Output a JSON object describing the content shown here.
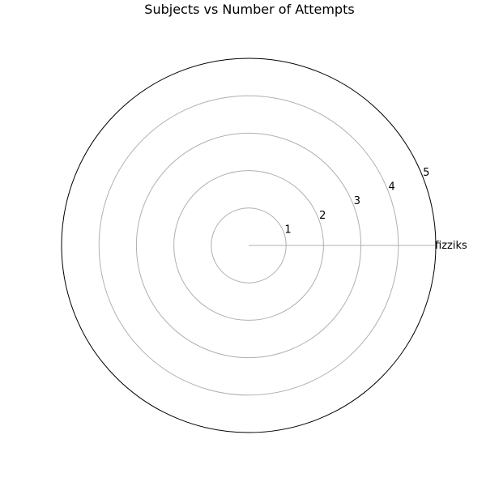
{
  "chart_data": {
    "type": "radar",
    "title": "Subjects vs Number of Attempts",
    "categories": [
      "fizziks"
    ],
    "rmax": 5,
    "rticks": [
      1,
      2,
      3,
      4,
      5
    ],
    "rtick_labels": [
      "1",
      "2",
      "3",
      "4",
      "5"
    ],
    "series": [
      {
        "values": [
          0
        ]
      }
    ],
    "grid": true,
    "grid_color": "#b0b0b0",
    "outer_ring_color": "#000000"
  }
}
